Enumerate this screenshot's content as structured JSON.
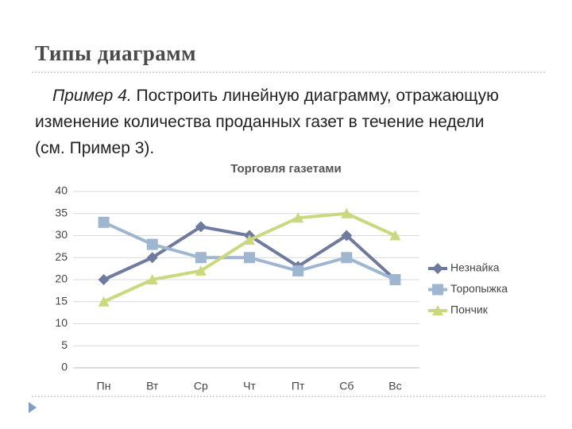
{
  "slide": {
    "title": "Типы диаграмм",
    "example_label": "Пример 4.",
    "text": "Построить линейную диаграмму, отражающую изменение количества проданных газет в течение недели (см. Пример 3)."
  },
  "chart_data": {
    "type": "line",
    "title": "Торговля газетами",
    "categories": [
      "Пн",
      "Вт",
      "Ср",
      "Чт",
      "Пт",
      "Сб",
      "Вс"
    ],
    "series": [
      {
        "name": "Незнайка",
        "color": "#6f7a9f",
        "marker": "diamond",
        "values": [
          20,
          25,
          32,
          30,
          23,
          30,
          20
        ]
      },
      {
        "name": "Торопыжка",
        "color": "#9fb6d0",
        "marker": "square",
        "values": [
          33,
          28,
          25,
          25,
          22,
          25,
          20
        ]
      },
      {
        "name": "Пончик",
        "color": "#cbd87e",
        "marker": "triangle",
        "values": [
          15,
          20,
          22,
          29,
          34,
          35,
          30
        ]
      }
    ],
    "ylim": [
      0,
      40
    ],
    "yticks": [
      0,
      5,
      10,
      15,
      20,
      25,
      30,
      35,
      40
    ],
    "grid": true,
    "legend": "right"
  }
}
